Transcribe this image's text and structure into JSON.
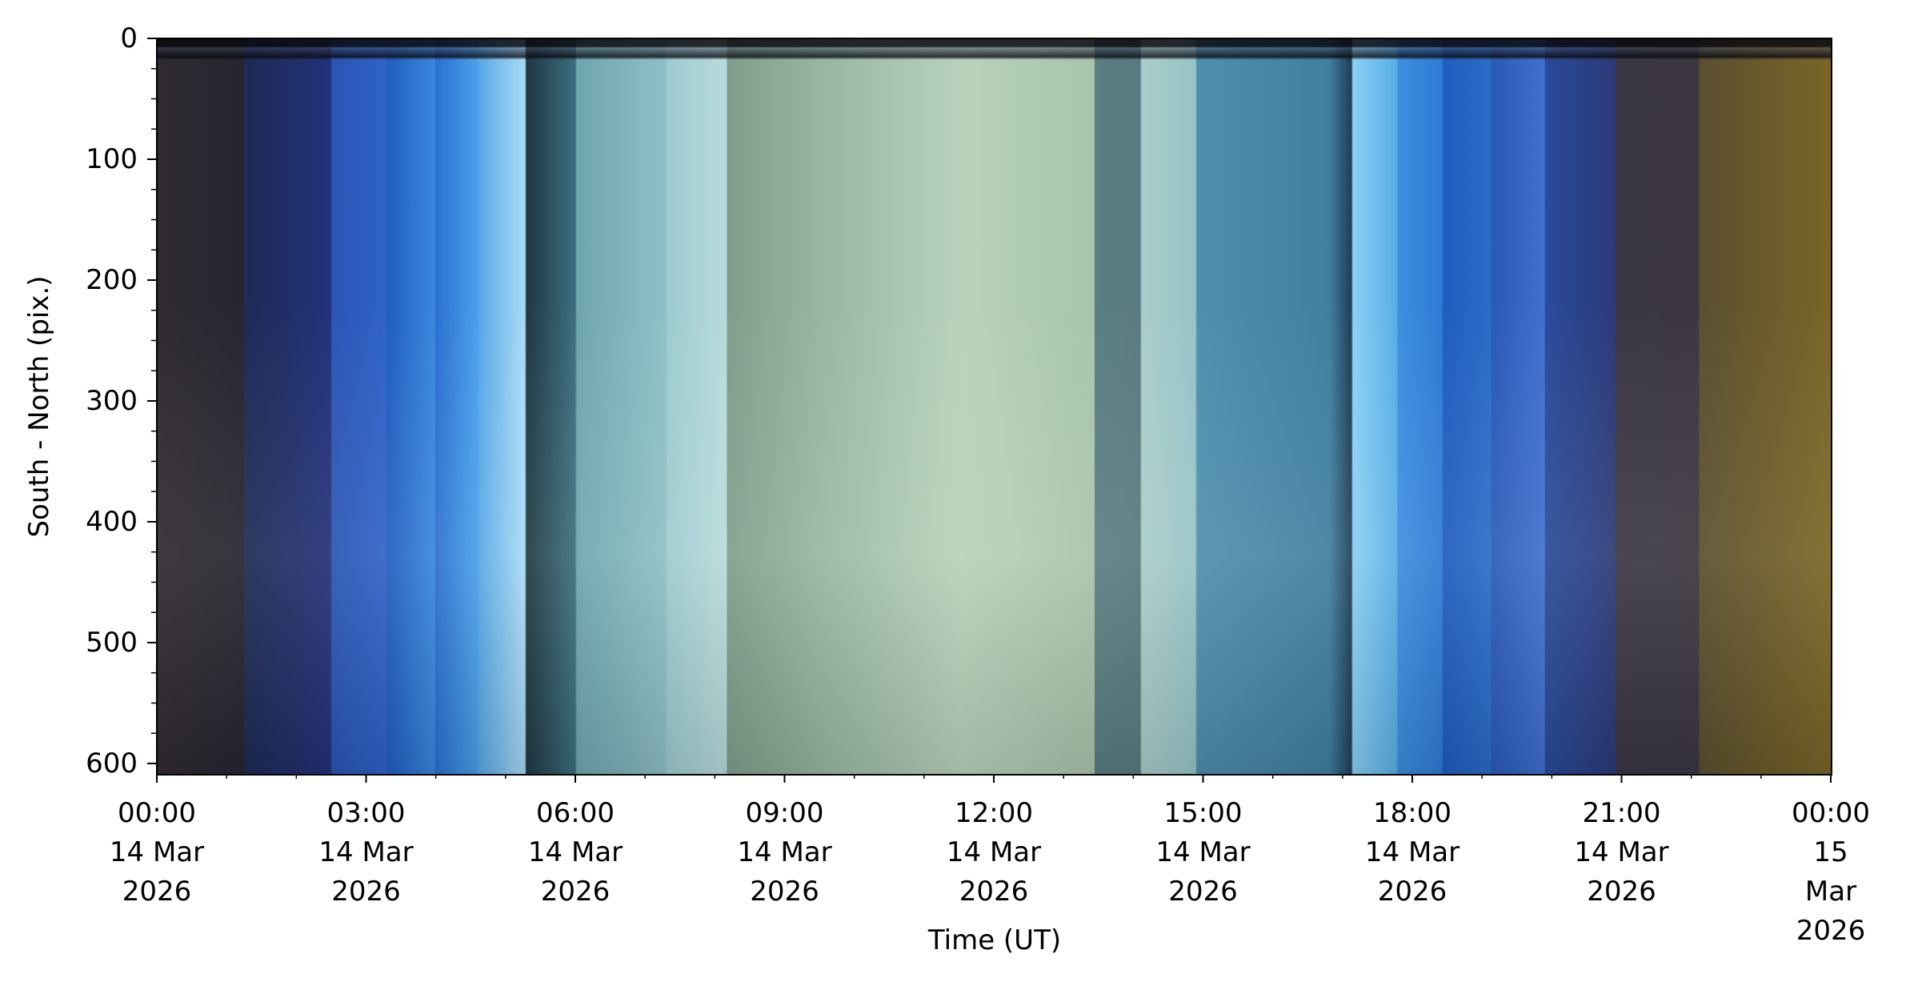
{
  "chart_data": {
    "type": "keogram",
    "xlabel": "Time (UT)",
    "ylabel": "South - North (pix.)",
    "xlim": [
      "2026-03-14T00:00",
      "2026-03-15T00:00"
    ],
    "xticks": [
      {
        "value": "2026-03-14T00:00",
        "label": "00:00\n14 Mar\n2026"
      },
      {
        "value": "2026-03-14T03:00",
        "label": "03:00\n14 Mar\n2026"
      },
      {
        "value": "2026-03-14T06:00",
        "label": "06:00\n14 Mar\n2026"
      },
      {
        "value": "2026-03-14T09:00",
        "label": "09:00\n14 Mar\n2026"
      },
      {
        "value": "2026-03-14T12:00",
        "label": "12:00\n14 Mar\n2026"
      },
      {
        "value": "2026-03-14T15:00",
        "label": "15:00\n14 Mar\n2026"
      },
      {
        "value": "2026-03-14T18:00",
        "label": "18:00\n14 Mar\n2026"
      },
      {
        "value": "2026-03-14T21:00",
        "label": "21:00\n14 Mar\n2026"
      },
      {
        "value": "2026-03-15T00:00",
        "label": "00:00\n15 Mar\n2026"
      }
    ],
    "xminorticks": [
      "2026-03-14T01:00",
      "2026-03-14T02:00",
      "2026-03-14T04:00",
      "2026-03-14T05:00",
      "2026-03-14T07:00",
      "2026-03-14T08:00",
      "2026-03-14T10:00",
      "2026-03-14T11:00",
      "2026-03-14T13:00",
      "2026-03-14T14:00",
      "2026-03-14T16:00",
      "2026-03-14T17:00",
      "2026-03-14T19:00",
      "2026-03-14T20:00",
      "2026-03-14T22:00",
      "2026-03-14T23:00"
    ],
    "ylim": [
      0,
      608
    ],
    "y_inverted": true,
    "yticks": [
      0,
      100,
      200,
      300,
      400,
      500,
      600
    ],
    "yminorticks": [
      25,
      50,
      75,
      125,
      150,
      175,
      225,
      250,
      275,
      325,
      350,
      375,
      425,
      450,
      475,
      525,
      550,
      575
    ]
  }
}
